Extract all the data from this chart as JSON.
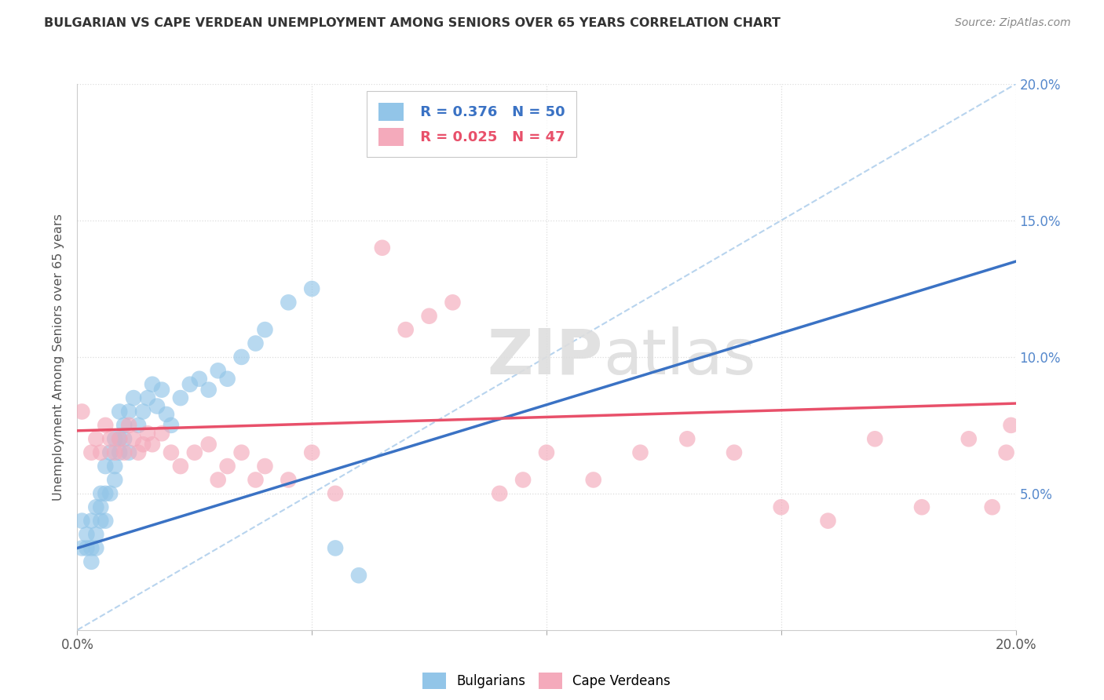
{
  "title": "BULGARIAN VS CAPE VERDEAN UNEMPLOYMENT AMONG SENIORS OVER 65 YEARS CORRELATION CHART",
  "source": "Source: ZipAtlas.com",
  "ylabel": "Unemployment Among Seniors over 65 years",
  "xlim": [
    0.0,
    0.2
  ],
  "ylim": [
    0.0,
    0.2
  ],
  "xticks": [
    0.0,
    0.05,
    0.1,
    0.15,
    0.2
  ],
  "yticks": [
    0.05,
    0.1,
    0.15,
    0.2
  ],
  "xtick_labels_bottom": [
    "0.0%",
    "",
    "",
    "",
    "20.0%"
  ],
  "ytick_labels_right": [
    "5.0%",
    "10.0%",
    "15.0%",
    "20.0%"
  ],
  "bulgarian_R": 0.376,
  "bulgarian_N": 50,
  "capeverdean_R": 0.025,
  "capeverdean_N": 47,
  "bulgarian_color": "#92C5E8",
  "capeverdean_color": "#F4AABB",
  "bulgarian_line_color": "#3A72C4",
  "capeverdean_line_color": "#E8506A",
  "diagonal_color": "#B8D4EE",
  "watermark_color": "#DEDEDE",
  "background_color": "#FFFFFF",
  "grid_color": "#DDDDDD",
  "bulgarian_x": [
    0.001,
    0.001,
    0.002,
    0.002,
    0.003,
    0.003,
    0.003,
    0.004,
    0.004,
    0.004,
    0.005,
    0.005,
    0.005,
    0.006,
    0.006,
    0.006,
    0.007,
    0.007,
    0.008,
    0.008,
    0.008,
    0.009,
    0.009,
    0.009,
    0.01,
    0.01,
    0.011,
    0.011,
    0.012,
    0.013,
    0.014,
    0.015,
    0.016,
    0.017,
    0.018,
    0.019,
    0.02,
    0.022,
    0.024,
    0.026,
    0.028,
    0.03,
    0.032,
    0.035,
    0.038,
    0.04,
    0.045,
    0.05,
    0.055,
    0.06
  ],
  "bulgarian_y": [
    0.03,
    0.04,
    0.03,
    0.035,
    0.025,
    0.03,
    0.04,
    0.03,
    0.035,
    0.045,
    0.04,
    0.045,
    0.05,
    0.04,
    0.05,
    0.06,
    0.05,
    0.065,
    0.055,
    0.06,
    0.07,
    0.065,
    0.07,
    0.08,
    0.07,
    0.075,
    0.065,
    0.08,
    0.085,
    0.075,
    0.08,
    0.085,
    0.09,
    0.082,
    0.088,
    0.079,
    0.075,
    0.085,
    0.09,
    0.092,
    0.088,
    0.095,
    0.092,
    0.1,
    0.105,
    0.11,
    0.12,
    0.125,
    0.03,
    0.02
  ],
  "capeverdean_x": [
    0.001,
    0.003,
    0.004,
    0.005,
    0.006,
    0.007,
    0.008,
    0.009,
    0.01,
    0.011,
    0.012,
    0.013,
    0.014,
    0.015,
    0.016,
    0.018,
    0.02,
    0.022,
    0.025,
    0.028,
    0.03,
    0.032,
    0.035,
    0.038,
    0.04,
    0.045,
    0.05,
    0.055,
    0.065,
    0.07,
    0.075,
    0.08,
    0.09,
    0.095,
    0.1,
    0.11,
    0.12,
    0.13,
    0.14,
    0.15,
    0.16,
    0.17,
    0.18,
    0.19,
    0.195,
    0.198,
    0.199
  ],
  "capeverdean_y": [
    0.08,
    0.065,
    0.07,
    0.065,
    0.075,
    0.07,
    0.065,
    0.07,
    0.065,
    0.075,
    0.07,
    0.065,
    0.068,
    0.072,
    0.068,
    0.072,
    0.065,
    0.06,
    0.065,
    0.068,
    0.055,
    0.06,
    0.065,
    0.055,
    0.06,
    0.055,
    0.065,
    0.05,
    0.14,
    0.11,
    0.115,
    0.12,
    0.05,
    0.055,
    0.065,
    0.055,
    0.065,
    0.07,
    0.065,
    0.045,
    0.04,
    0.07,
    0.045,
    0.07,
    0.045,
    0.065,
    0.075
  ],
  "bulg_line_x0": 0.0,
  "bulg_line_y0": 0.03,
  "bulg_line_x1": 0.2,
  "bulg_line_y1": 0.135,
  "cape_line_x0": 0.0,
  "cape_line_y0": 0.073,
  "cape_line_x1": 0.2,
  "cape_line_y1": 0.083
}
